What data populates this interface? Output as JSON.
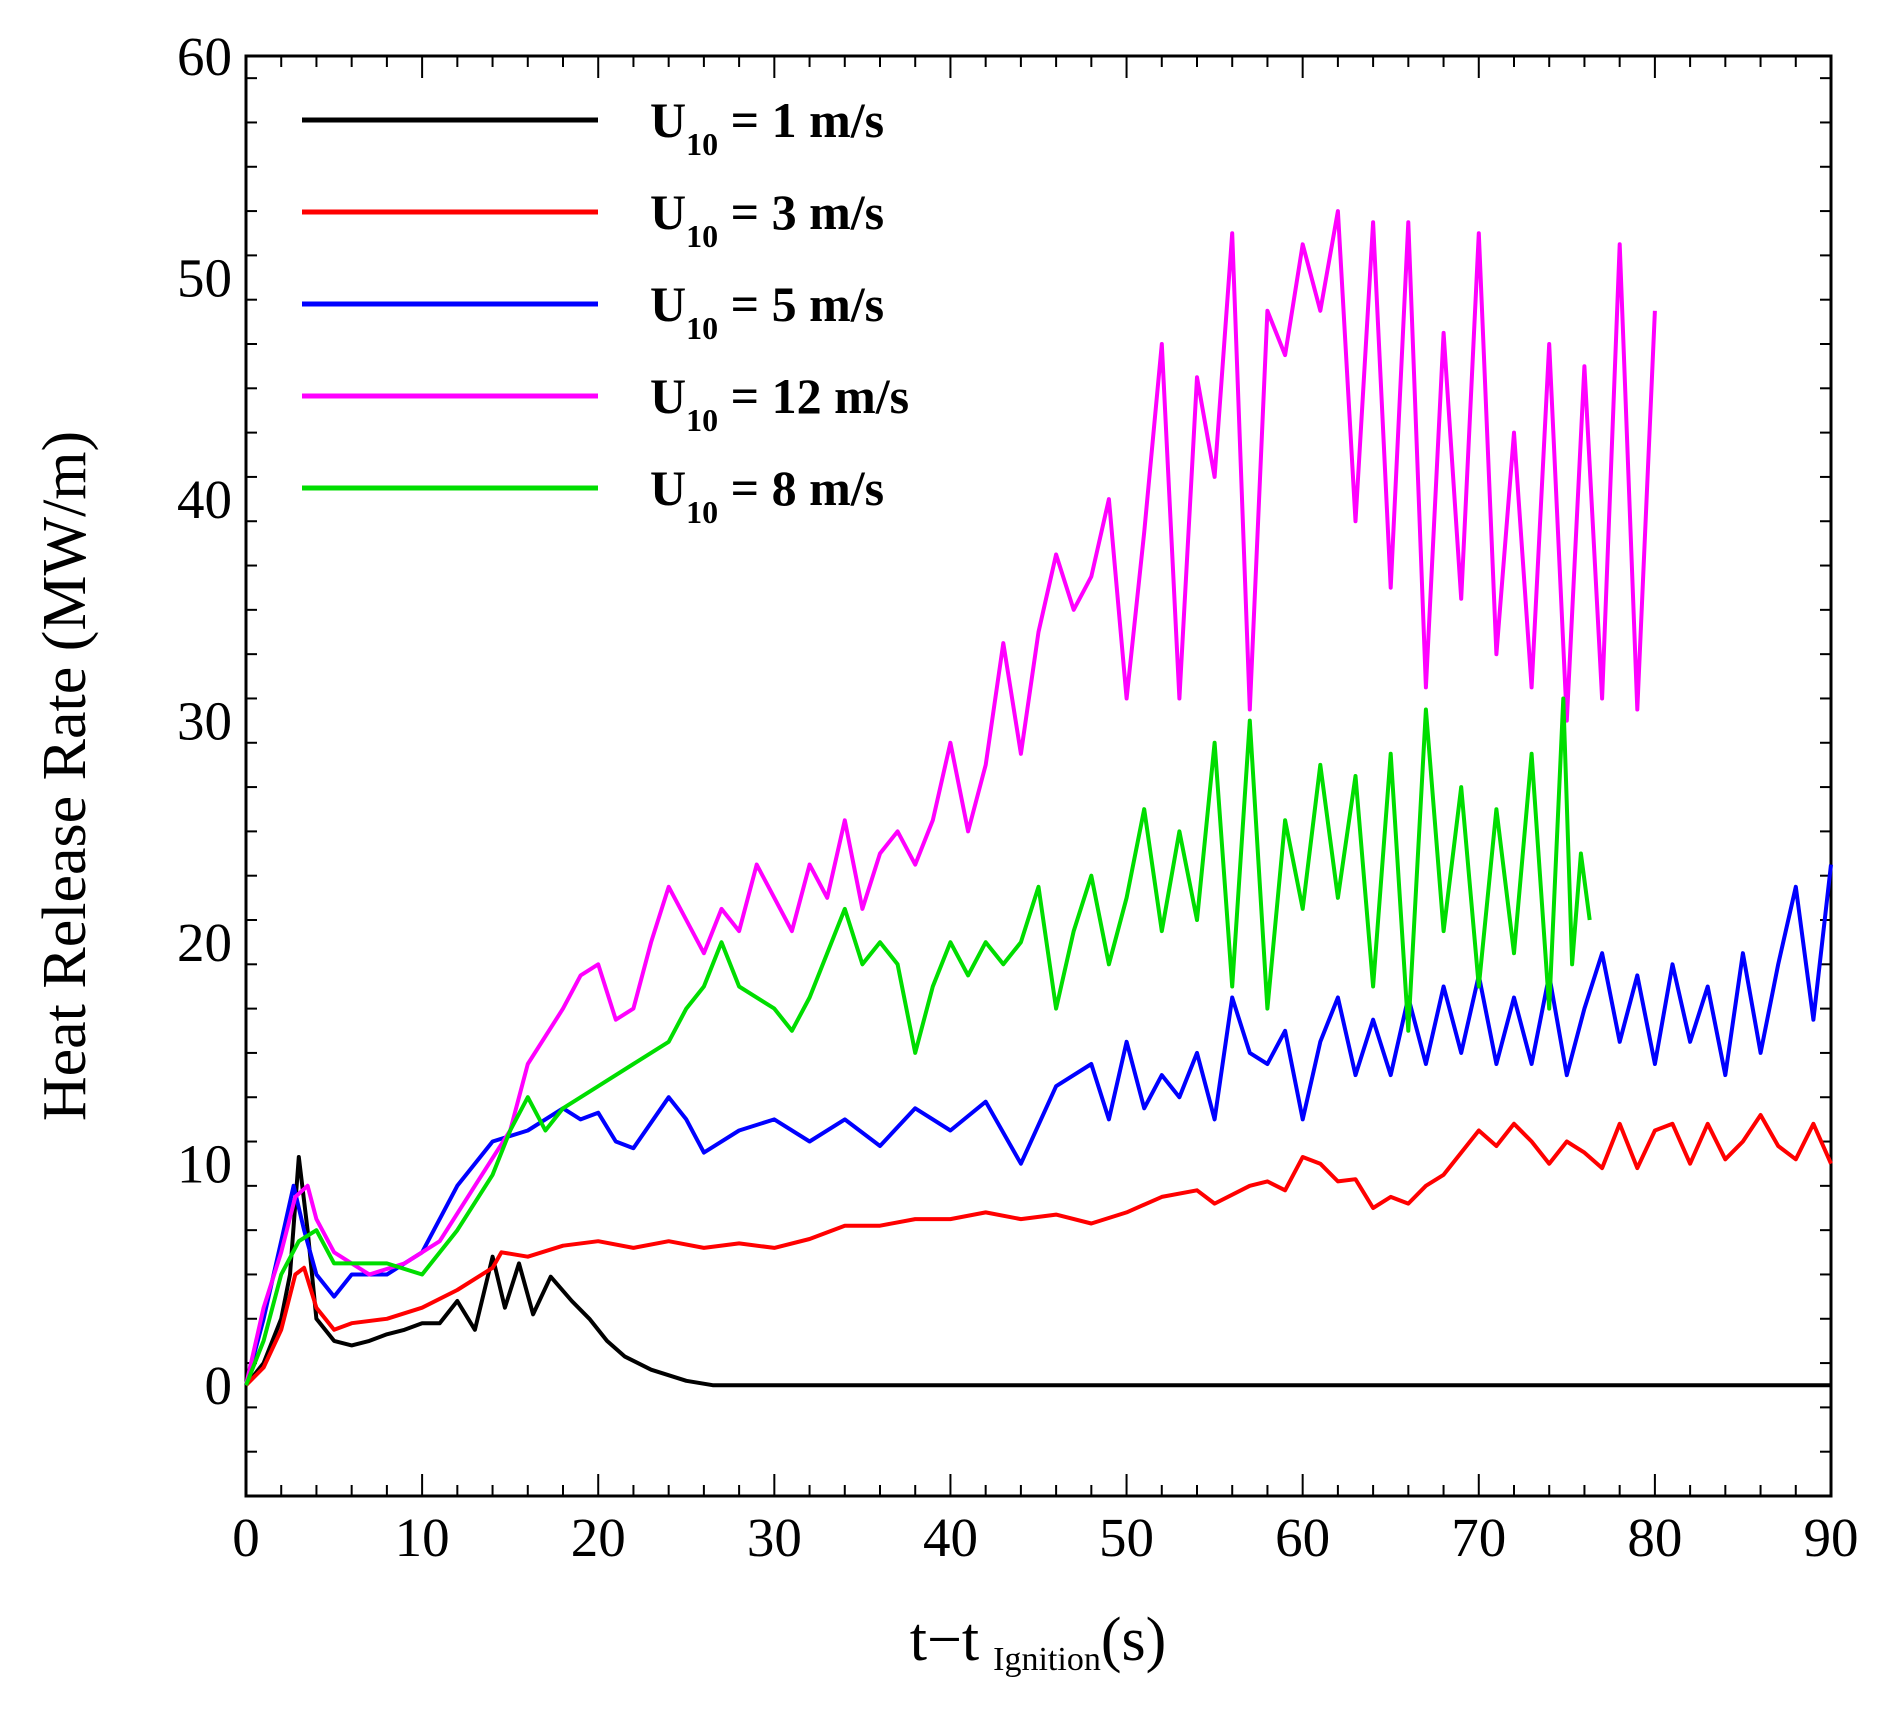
{
  "chart_data": {
    "type": "line",
    "xlabel": {
      "main": "t−t",
      "sub": "Ignition",
      "unit": "(s)"
    },
    "ylabel": "Heat Release Rate (MW/m)",
    "xlim": [
      0,
      90
    ],
    "ylim": [
      -5,
      60
    ],
    "xticks": [
      0,
      10,
      20,
      30,
      40,
      50,
      60,
      70,
      80,
      90
    ],
    "yticks": [
      0,
      10,
      20,
      30,
      40,
      50,
      60
    ],
    "grid": false,
    "legend_position": "top-left",
    "series": [
      {
        "name": "1 m/s",
        "legend_prefix": "U",
        "legend_sub": "10",
        "legend_eq": " = ",
        "color": "#000000",
        "points": [
          [
            0,
            0
          ],
          [
            1,
            1
          ],
          [
            2,
            3
          ],
          [
            2.5,
            5
          ],
          [
            3,
            10.3
          ],
          [
            3.5,
            7
          ],
          [
            4,
            3
          ],
          [
            5,
            2
          ],
          [
            6,
            1.8
          ],
          [
            7,
            2
          ],
          [
            8,
            2.3
          ],
          [
            9,
            2.5
          ],
          [
            10,
            2.8
          ],
          [
            11,
            2.8
          ],
          [
            12,
            3.8
          ],
          [
            13,
            2.5
          ],
          [
            14,
            5.8
          ],
          [
            14.7,
            3.5
          ],
          [
            15.5,
            5.5
          ],
          [
            16.3,
            3.2
          ],
          [
            17.3,
            4.9
          ],
          [
            18.5,
            3.8
          ],
          [
            19.5,
            3
          ],
          [
            20.5,
            2
          ],
          [
            21.5,
            1.3
          ],
          [
            23,
            0.7
          ],
          [
            25,
            0.2
          ],
          [
            26.5,
            0
          ],
          [
            90,
            0
          ]
        ]
      },
      {
        "name": "3 m/s",
        "legend_prefix": "U",
        "legend_sub": "10",
        "legend_eq": " = ",
        "color": "#ff0000",
        "points": [
          [
            0,
            0
          ],
          [
            1,
            0.8
          ],
          [
            2,
            2.5
          ],
          [
            2.8,
            5
          ],
          [
            3.3,
            5.3
          ],
          [
            4,
            3.5
          ],
          [
            5,
            2.5
          ],
          [
            6,
            2.8
          ],
          [
            8,
            3
          ],
          [
            10,
            3.5
          ],
          [
            12,
            4.3
          ],
          [
            14,
            5.3
          ],
          [
            14.5,
            6
          ],
          [
            16,
            5.8
          ],
          [
            18,
            6.3
          ],
          [
            20,
            6.5
          ],
          [
            22,
            6.2
          ],
          [
            24,
            6.5
          ],
          [
            26,
            6.2
          ],
          [
            28,
            6.4
          ],
          [
            30,
            6.2
          ],
          [
            32,
            6.6
          ],
          [
            34,
            7.2
          ],
          [
            36,
            7.2
          ],
          [
            38,
            7.5
          ],
          [
            40,
            7.5
          ],
          [
            42,
            7.8
          ],
          [
            44,
            7.5
          ],
          [
            46,
            7.7
          ],
          [
            48,
            7.3
          ],
          [
            50,
            7.8
          ],
          [
            52,
            8.5
          ],
          [
            54,
            8.8
          ],
          [
            55,
            8.2
          ],
          [
            57,
            9
          ],
          [
            58,
            9.2
          ],
          [
            59,
            8.8
          ],
          [
            60,
            10.3
          ],
          [
            61,
            10
          ],
          [
            62,
            9.2
          ],
          [
            63,
            9.3
          ],
          [
            64,
            8
          ],
          [
            65,
            8.5
          ],
          [
            66,
            8.2
          ],
          [
            67,
            9
          ],
          [
            68,
            9.5
          ],
          [
            69,
            10.5
          ],
          [
            70,
            11.5
          ],
          [
            71,
            10.8
          ],
          [
            72,
            11.8
          ],
          [
            73,
            11
          ],
          [
            74,
            10
          ],
          [
            75,
            11
          ],
          [
            76,
            10.5
          ],
          [
            77,
            9.8
          ],
          [
            78,
            11.8
          ],
          [
            79,
            9.8
          ],
          [
            80,
            11.5
          ],
          [
            81,
            11.8
          ],
          [
            82,
            10
          ],
          [
            83,
            11.8
          ],
          [
            84,
            10.2
          ],
          [
            85,
            11
          ],
          [
            86,
            12.2
          ],
          [
            87,
            10.8
          ],
          [
            88,
            10.2
          ],
          [
            89,
            11.8
          ],
          [
            90,
            10
          ]
        ]
      },
      {
        "name": "5 m/s",
        "legend_prefix": "U",
        "legend_sub": "10",
        "legend_eq": " = ",
        "color": "#0000ff",
        "points": [
          [
            0,
            0
          ],
          [
            1,
            3
          ],
          [
            2,
            6.5
          ],
          [
            2.7,
            9
          ],
          [
            3.3,
            7
          ],
          [
            4,
            5
          ],
          [
            5,
            4
          ],
          [
            6,
            5
          ],
          [
            8,
            5
          ],
          [
            10,
            6
          ],
          [
            12,
            9
          ],
          [
            14,
            11
          ],
          [
            16,
            11.5
          ],
          [
            18,
            12.5
          ],
          [
            19,
            12
          ],
          [
            20,
            12.3
          ],
          [
            21,
            11
          ],
          [
            22,
            10.7
          ],
          [
            24,
            13
          ],
          [
            25,
            12
          ],
          [
            26,
            10.5
          ],
          [
            28,
            11.5
          ],
          [
            30,
            12
          ],
          [
            32,
            11
          ],
          [
            34,
            12
          ],
          [
            36,
            10.8
          ],
          [
            38,
            12.5
          ],
          [
            40,
            11.5
          ],
          [
            42,
            12.8
          ],
          [
            44,
            10
          ],
          [
            46,
            13.5
          ],
          [
            48,
            14.5
          ],
          [
            49,
            12
          ],
          [
            50,
            15.5
          ],
          [
            51,
            12.5
          ],
          [
            52,
            14
          ],
          [
            53,
            13
          ],
          [
            54,
            15
          ],
          [
            55,
            12
          ],
          [
            56,
            17.5
          ],
          [
            57,
            15
          ],
          [
            58,
            14.5
          ],
          [
            59,
            16
          ],
          [
            60,
            12
          ],
          [
            61,
            15.5
          ],
          [
            62,
            17.5
          ],
          [
            63,
            14
          ],
          [
            64,
            16.5
          ],
          [
            65,
            14
          ],
          [
            66,
            17.5
          ],
          [
            67,
            14.5
          ],
          [
            68,
            18
          ],
          [
            69,
            15
          ],
          [
            70,
            18.5
          ],
          [
            71,
            14.5
          ],
          [
            72,
            17.5
          ],
          [
            73,
            14.5
          ],
          [
            74,
            18.5
          ],
          [
            75,
            14
          ],
          [
            76,
            17
          ],
          [
            77,
            19.5
          ],
          [
            78,
            15.5
          ],
          [
            79,
            18.5
          ],
          [
            80,
            14.5
          ],
          [
            81,
            19
          ],
          [
            82,
            15.5
          ],
          [
            83,
            18
          ],
          [
            84,
            14
          ],
          [
            85,
            19.5
          ],
          [
            86,
            15
          ],
          [
            87,
            19
          ],
          [
            88,
            22.5
          ],
          [
            89,
            16.5
          ],
          [
            90,
            23.5
          ]
        ]
      },
      {
        "name": "12 m/s",
        "legend_prefix": "U",
        "legend_sub": "10",
        "legend_eq": " = ",
        "color": "#ff00ff",
        "points": [
          [
            0,
            0
          ],
          [
            1,
            3.5
          ],
          [
            2,
            6
          ],
          [
            2.8,
            8.5
          ],
          [
            3.5,
            9
          ],
          [
            4,
            7.5
          ],
          [
            5,
            6
          ],
          [
            6,
            5.5
          ],
          [
            7,
            5
          ],
          [
            9,
            5.5
          ],
          [
            11,
            6.5
          ],
          [
            13,
            9
          ],
          [
            15,
            11.5
          ],
          [
            16,
            14.5
          ],
          [
            18,
            17
          ],
          [
            19,
            18.5
          ],
          [
            20,
            19
          ],
          [
            21,
            16.5
          ],
          [
            22,
            17
          ],
          [
            23,
            20
          ],
          [
            24,
            22.5
          ],
          [
            25,
            21
          ],
          [
            26,
            19.5
          ],
          [
            27,
            21.5
          ],
          [
            28,
            20.5
          ],
          [
            29,
            23.5
          ],
          [
            30,
            22
          ],
          [
            31,
            20.5
          ],
          [
            32,
            23.5
          ],
          [
            33,
            22
          ],
          [
            34,
            25.5
          ],
          [
            35,
            21.5
          ],
          [
            36,
            24
          ],
          [
            37,
            25
          ],
          [
            38,
            23.5
          ],
          [
            39,
            25.5
          ],
          [
            40,
            29
          ],
          [
            41,
            25
          ],
          [
            42,
            28
          ],
          [
            43,
            33.5
          ],
          [
            44,
            28.5
          ],
          [
            45,
            34
          ],
          [
            46,
            37.5
          ],
          [
            47,
            35
          ],
          [
            48,
            36.5
          ],
          [
            49,
            40
          ],
          [
            50,
            31
          ],
          [
            51,
            38.5
          ],
          [
            52,
            47
          ],
          [
            53,
            31
          ],
          [
            54,
            45.5
          ],
          [
            55,
            41
          ],
          [
            56,
            52
          ],
          [
            57,
            30.5
          ],
          [
            58,
            48.5
          ],
          [
            59,
            46.5
          ],
          [
            60,
            51.5
          ],
          [
            61,
            48.5
          ],
          [
            62,
            53
          ],
          [
            63,
            39
          ],
          [
            64,
            52.5
          ],
          [
            65,
            36
          ],
          [
            66,
            52.5
          ],
          [
            67,
            31.5
          ],
          [
            68,
            47.5
          ],
          [
            69,
            35.5
          ],
          [
            70,
            52
          ],
          [
            71,
            33
          ],
          [
            72,
            43
          ],
          [
            73,
            31.5
          ],
          [
            74,
            47
          ],
          [
            75,
            30
          ],
          [
            76,
            46
          ],
          [
            77,
            31
          ],
          [
            78,
            51.5
          ],
          [
            79,
            30.5
          ],
          [
            80,
            48.5
          ]
        ]
      },
      {
        "name": "8 m/s",
        "legend_prefix": "U",
        "legend_sub": "10",
        "legend_eq": " = ",
        "color": "#00dd00",
        "points": [
          [
            0,
            0
          ],
          [
            1,
            2
          ],
          [
            2,
            5
          ],
          [
            3,
            6.5
          ],
          [
            4,
            7
          ],
          [
            5,
            5.5
          ],
          [
            6,
            5.5
          ],
          [
            8,
            5.5
          ],
          [
            10,
            5
          ],
          [
            12,
            7
          ],
          [
            14,
            9.5
          ],
          [
            15,
            11.5
          ],
          [
            16,
            13
          ],
          [
            17,
            11.5
          ],
          [
            18,
            12.5
          ],
          [
            20,
            13.5
          ],
          [
            22,
            14.5
          ],
          [
            24,
            15.5
          ],
          [
            25,
            17
          ],
          [
            26,
            18
          ],
          [
            27,
            20
          ],
          [
            28,
            18
          ],
          [
            30,
            17
          ],
          [
            31,
            16
          ],
          [
            32,
            17.5
          ],
          [
            33,
            19.5
          ],
          [
            34,
            21.5
          ],
          [
            35,
            19
          ],
          [
            36,
            20
          ],
          [
            37,
            19
          ],
          [
            38,
            15
          ],
          [
            39,
            18
          ],
          [
            40,
            20
          ],
          [
            41,
            18.5
          ],
          [
            42,
            20
          ],
          [
            43,
            19
          ],
          [
            44,
            20
          ],
          [
            45,
            22.5
          ],
          [
            46,
            17
          ],
          [
            47,
            20.5
          ],
          [
            48,
            23
          ],
          [
            49,
            19
          ],
          [
            50,
            22
          ],
          [
            51,
            26
          ],
          [
            52,
            20.5
          ],
          [
            53,
            25
          ],
          [
            54,
            21
          ],
          [
            55,
            29
          ],
          [
            56,
            18
          ],
          [
            57,
            30
          ],
          [
            58,
            17
          ],
          [
            59,
            25.5
          ],
          [
            60,
            21.5
          ],
          [
            61,
            28
          ],
          [
            62,
            22
          ],
          [
            63,
            27.5
          ],
          [
            64,
            18
          ],
          [
            65,
            28.5
          ],
          [
            66,
            16
          ],
          [
            67,
            30.5
          ],
          [
            68,
            20.5
          ],
          [
            69,
            27
          ],
          [
            70,
            18
          ],
          [
            71,
            26
          ],
          [
            72,
            19.5
          ],
          [
            73,
            28.5
          ],
          [
            74,
            17
          ],
          [
            74.8,
            31
          ],
          [
            75.3,
            19
          ],
          [
            75.8,
            24
          ],
          [
            76.3,
            21
          ]
        ]
      }
    ]
  }
}
